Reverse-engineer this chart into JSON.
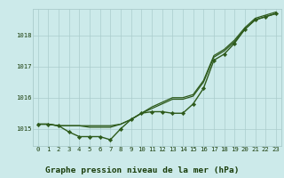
{
  "title": "Graphe pression niveau de la mer (hPa)",
  "hours": [
    0,
    1,
    2,
    3,
    4,
    5,
    6,
    7,
    8,
    9,
    10,
    11,
    12,
    13,
    14,
    15,
    16,
    17,
    18,
    19,
    20,
    21,
    22,
    23
  ],
  "series_marked": [
    1015.15,
    1015.15,
    1015.1,
    1014.9,
    1014.75,
    1014.75,
    1014.75,
    1014.65,
    1015.0,
    1015.3,
    1015.5,
    1015.55,
    1015.55,
    1015.5,
    1015.5,
    1015.8,
    1016.3,
    1017.2,
    1017.4,
    1017.75,
    1018.2,
    1018.5,
    1018.6,
    1018.7
  ],
  "series_line1": [
    1015.15,
    1015.15,
    1015.1,
    1015.1,
    1015.1,
    1015.05,
    1015.05,
    1015.05,
    1015.15,
    1015.3,
    1015.5,
    1015.65,
    1015.8,
    1015.95,
    1015.95,
    1016.05,
    1016.5,
    1017.3,
    1017.5,
    1017.8,
    1018.2,
    1018.5,
    1018.6,
    1018.7
  ],
  "series_line2": [
    1015.15,
    1015.15,
    1015.1,
    1015.1,
    1015.1,
    1015.1,
    1015.1,
    1015.1,
    1015.15,
    1015.3,
    1015.5,
    1015.7,
    1015.85,
    1016.0,
    1016.0,
    1016.1,
    1016.55,
    1017.35,
    1017.55,
    1017.85,
    1018.25,
    1018.55,
    1018.65,
    1018.75
  ],
  "ylim": [
    1014.45,
    1018.85
  ],
  "yticks": [
    1015,
    1016,
    1017,
    1018
  ],
  "line_color": "#2d5a1b",
  "bg_color": "#cceaea",
  "grid_color": "#aacccc",
  "label_color": "#1a3d0a",
  "title_fontsize": 6.8,
  "tick_fontsize": 5.2,
  "marker": "D",
  "markersize": 2.2,
  "lw_marked": 1.0,
  "lw_line": 0.9
}
